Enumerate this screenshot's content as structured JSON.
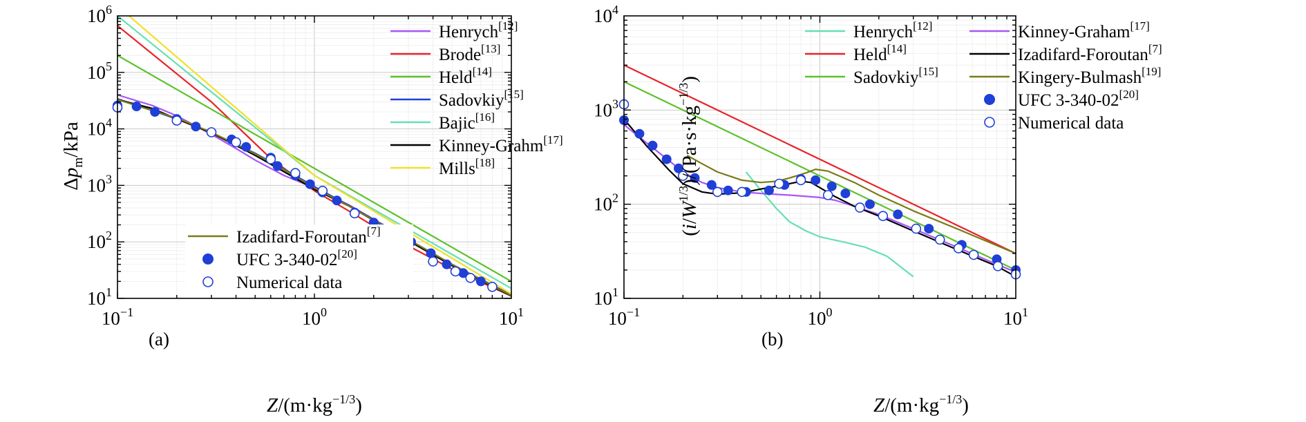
{
  "chart_data": [
    {
      "panel": "(a)",
      "type": "line",
      "xlabel_main": "Z",
      "xlabel_unit": "/(m·kg",
      "xlabel_exp": "−1/3",
      "xlabel_close": ")",
      "ylabel_main": "Δp",
      "ylabel_sub": "m",
      "ylabel_unit": "/kPa",
      "xscale": "log",
      "yscale": "log",
      "xlim": [
        0.1,
        10
      ],
      "ylim": [
        10,
        1000000
      ],
      "xticks": [
        {
          "base": "10",
          "exp": "−1",
          "value": 0.1
        },
        {
          "base": "10",
          "exp": "0",
          "value": 1
        },
        {
          "base": "10",
          "exp": "1",
          "value": 10
        }
      ],
      "yticks": [
        {
          "base": "10",
          "exp": "1",
          "value": 10
        },
        {
          "base": "10",
          "exp": "2",
          "value": 100
        },
        {
          "base": "10",
          "exp": "3",
          "value": 1000
        },
        {
          "base": "10",
          "exp": "4",
          "value": 10000
        },
        {
          "base": "10",
          "exp": "5",
          "value": 100000
        },
        {
          "base": "10",
          "exp": "6",
          "value": 1000000
        }
      ],
      "grid": true,
      "legend_top": {
        "placement": "top-right",
        "entries": [
          {
            "name": "Henrych",
            "ref": "[12]",
            "color": "#a855f7"
          },
          {
            "name": "Brode",
            "ref": "[13]",
            "color": "#e8232a"
          },
          {
            "name": "Held",
            "ref": "[14]",
            "color": "#5cc22a"
          },
          {
            "name": "Sadovkiy",
            "ref": "[15]",
            "color": "#1f3fd6"
          },
          {
            "name": "Bajic",
            "ref": "[16]",
            "color": "#66e0b0"
          },
          {
            "name": "Kinney-Grahm",
            "ref": "[17]",
            "color": "#000000"
          },
          {
            "name": "Mills",
            "ref": "[18]",
            "color": "#f0e02a"
          }
        ]
      },
      "legend_bottom": {
        "placement": "bottom-left",
        "entries": [
          {
            "name": "Izadifard-Foroutan",
            "ref": "[7]",
            "color": "#7a7a18",
            "kind": "line"
          },
          {
            "name": "UFC 3-340-02",
            "ref": "[20]",
            "color": "#1f3fd6",
            "kind": "filled-marker"
          },
          {
            "name": "Numerical data",
            "ref": "",
            "color": "#1f3fd6",
            "kind": "open-marker"
          }
        ]
      },
      "series": [
        {
          "name": "Henrych",
          "color": "#a855f7",
          "x": [
            0.1,
            0.15,
            0.2,
            0.3,
            0.4,
            0.5,
            0.7,
            1.0,
            1.5,
            2,
            3,
            5,
            10
          ],
          "y": [
            40000,
            26000,
            17000,
            8000,
            4500,
            2800,
            1500,
            900,
            450,
            250,
            110,
            40,
            11
          ]
        },
        {
          "name": "Brode",
          "color": "#e8232a",
          "x": [
            0.1,
            0.3,
            0.6,
            1,
            1.5,
            2,
            3,
            5,
            10
          ],
          "y": [
            670000,
            30000,
            3000,
            800,
            350,
            190,
            85,
            33,
            11
          ]
        },
        {
          "name": "Held",
          "color": "#5cc22a",
          "x": [
            0.1,
            10
          ],
          "y": [
            200000,
            20
          ]
        },
        {
          "name": "Sadovkiy",
          "color": "#1f3fd6",
          "x": [
            0.1,
            0.2,
            0.3,
            0.5,
            0.7,
            1.0,
            1.5,
            2,
            3,
            5,
            10
          ],
          "y": [
            34000,
            15000,
            8600,
            3700,
            1950,
            950,
            440,
            250,
            110,
            40,
            11.5
          ]
        },
        {
          "name": "Bajic",
          "color": "#66e0b0",
          "x": [
            0.1,
            1,
            10
          ],
          "y": [
            1000000,
            1500,
            15
          ]
        },
        {
          "name": "Kinney-Grahm",
          "color": "#000000",
          "x": [
            0.1,
            0.15,
            0.2,
            0.3,
            0.5,
            0.7,
            1.0,
            1.5,
            2,
            3,
            5,
            10
          ],
          "y": [
            33000,
            23000,
            15000,
            8500,
            3400,
            1750,
            850,
            430,
            240,
            105,
            38,
            11
          ]
        },
        {
          "name": "Mills",
          "color": "#f0e02a",
          "x": [
            0.1,
            1,
            10
          ],
          "y": [
            1500000,
            1500,
            12
          ]
        },
        {
          "name": "Izadifard-Foroutan",
          "color": "#7a7a18",
          "x": [
            0.1,
            0.2,
            0.3,
            0.5,
            0.7,
            1.0,
            1.5,
            2,
            3,
            5,
            10
          ],
          "y": [
            33000,
            15500,
            8700,
            3600,
            1900,
            900,
            430,
            245,
            110,
            40,
            11.2
          ]
        }
      ],
      "markers": [
        {
          "name": "UFC 3-340-02",
          "style": "filled",
          "x": [
            0.1,
            0.125,
            0.155,
            0.2,
            0.25,
            0.3,
            0.38,
            0.45,
            0.6,
            0.65,
            0.8,
            0.95,
            1.1,
            1.3,
            1.6,
            2,
            2.5,
            3.1,
            3.9,
            4.7,
            5.7,
            7
          ],
          "y": [
            26000,
            25000,
            20000,
            15000,
            11000,
            8700,
            6500,
            4800,
            3100,
            2200,
            1500,
            1050,
            750,
            540,
            330,
            220,
            140,
            100,
            63,
            40,
            28,
            20
          ]
        },
        {
          "name": "Numerical data",
          "style": "open",
          "x": [
            0.1,
            0.2,
            0.3,
            0.4,
            0.6,
            0.8,
            1.1,
            1.6,
            2.2,
            3,
            4,
            5.2,
            6.2,
            8
          ],
          "y": [
            24000,
            14000,
            8700,
            5800,
            2900,
            1650,
            800,
            320,
            170,
            85,
            45,
            30,
            23,
            16
          ]
        }
      ]
    },
    {
      "panel": "(b)",
      "type": "line",
      "xlabel_main": "Z",
      "xlabel_unit": "/(m·kg",
      "xlabel_exp": "−1/3",
      "xlabel_close": ")",
      "ylabel_open": "(",
      "ylabel_i": "i",
      "ylabel_slash": "/",
      "ylabel_w": "W",
      "ylabel_wexp": "1/3",
      "ylabel_unit": ")/(Pa·s·kg",
      "ylabel_unitexp": "−1/3",
      "ylabel_close": ")",
      "xscale": "log",
      "yscale": "log",
      "xlim": [
        0.1,
        10
      ],
      "ylim": [
        10,
        10000
      ],
      "xticks": [
        {
          "base": "10",
          "exp": "−1",
          "value": 0.1
        },
        {
          "base": "10",
          "exp": "0",
          "value": 1
        },
        {
          "base": "10",
          "exp": "1",
          "value": 10
        }
      ],
      "yticks": [
        {
          "base": "10",
          "exp": "1",
          "value": 10
        },
        {
          "base": "10",
          "exp": "2",
          "value": 100
        },
        {
          "base": "10",
          "exp": "3",
          "value": 1000
        },
        {
          "base": "10",
          "exp": "4",
          "value": 10000
        }
      ],
      "grid": true,
      "legend": {
        "placement": "top",
        "col1": [
          {
            "name": "Henrych",
            "ref": "[12]",
            "color": "#66e0b0",
            "kind": "line"
          },
          {
            "name": "Held",
            "ref": "[14]",
            "color": "#e8232a",
            "kind": "line"
          },
          {
            "name": "Sadovkiy",
            "ref": "[15]",
            "color": "#5cc22a",
            "kind": "line"
          }
        ],
        "col2": [
          {
            "name": "Kinney-Graham",
            "ref": "[17]",
            "color": "#a855f7",
            "kind": "line"
          },
          {
            "name": "Izadifard-Foroutan",
            "ref": "[7]",
            "color": "#000000",
            "kind": "line"
          },
          {
            "name": "Kingery-Bulmash",
            "ref": "[19]",
            "color": "#7a7a18",
            "kind": "line"
          },
          {
            "name": "UFC 3-340-02",
            "ref": "[20]",
            "color": "#1f3fd6",
            "kind": "filled-marker"
          },
          {
            "name": "Numerical data",
            "ref": "",
            "color": "#1f3fd6",
            "kind": "open-marker"
          }
        ]
      },
      "series": [
        {
          "name": "Henrych",
          "color": "#66e0b0",
          "x": [
            0.42,
            0.5,
            0.6,
            0.7,
            0.85,
            1.0,
            1.3,
            1.7,
            2.2,
            3.0
          ],
          "y": [
            220,
            140,
            90,
            65,
            52,
            45,
            40,
            35,
            28,
            17
          ]
        },
        {
          "name": "Held",
          "color": "#e8232a",
          "x": [
            0.1,
            10
          ],
          "y": [
            3000,
            30
          ]
        },
        {
          "name": "Sadovkiy",
          "color": "#5cc22a",
          "x": [
            0.1,
            10
          ],
          "y": [
            2000,
            20
          ]
        },
        {
          "name": "Kinney-Graham",
          "color": "#a855f7",
          "x": [
            0.1,
            0.13,
            0.17,
            0.2,
            0.25,
            0.3,
            0.4,
            0.5,
            0.7,
            0.9,
            1.0,
            1.2,
            1.5,
            2,
            3,
            5,
            8,
            10
          ],
          "y": [
            700,
            450,
            290,
            220,
            170,
            150,
            135,
            130,
            125,
            120,
            118,
            110,
            95,
            78,
            55,
            35,
            23,
            19
          ]
        },
        {
          "name": "Izadifard-Foroutan",
          "color": "#000000",
          "x": [
            0.1,
            0.13,
            0.17,
            0.2,
            0.25,
            0.3,
            0.4,
            0.5,
            0.6,
            0.7,
            0.8,
            0.9,
            1.0,
            1.2,
            1.5,
            2,
            3,
            5,
            8,
            10
          ],
          "y": [
            800,
            420,
            230,
            165,
            135,
            128,
            132,
            145,
            155,
            165,
            175,
            170,
            150,
            120,
            95,
            75,
            52,
            33,
            22,
            17
          ]
        },
        {
          "name": "Kingery-Bulmash",
          "color": "#7a7a18",
          "x": [
            0.21,
            0.25,
            0.3,
            0.4,
            0.5,
            0.6,
            0.7,
            0.85,
            0.95,
            1.1,
            1.5,
            2,
            3,
            5,
            10
          ],
          "y": [
            330,
            270,
            220,
            180,
            170,
            175,
            190,
            215,
            235,
            225,
            170,
            125,
            85,
            55,
            30
          ]
        }
      ],
      "markers": [
        {
          "name": "UFC 3-340-02",
          "style": "filled",
          "x": [
            0.1,
            0.12,
            0.14,
            0.165,
            0.19,
            0.23,
            0.28,
            0.34,
            0.42,
            0.55,
            0.66,
            0.8,
            0.95,
            1.15,
            1.35,
            1.8,
            2.5,
            3.6,
            5.3,
            8,
            10
          ],
          "y": [
            780,
            560,
            420,
            300,
            240,
            190,
            160,
            140,
            135,
            140,
            160,
            185,
            180,
            155,
            130,
            100,
            78,
            55,
            37,
            26,
            20
          ]
        },
        {
          "name": "Numerical data",
          "style": "open",
          "x": [
            0.1,
            0.2,
            0.3,
            0.4,
            0.62,
            0.8,
            1.1,
            1.6,
            2.1,
            3.1,
            4.1,
            5.1,
            6.1,
            8.1,
            10
          ],
          "y": [
            1150,
            200,
            135,
            135,
            165,
            180,
            125,
            92,
            75,
            55,
            42,
            34,
            29,
            22,
            18
          ]
        }
      ]
    }
  ]
}
